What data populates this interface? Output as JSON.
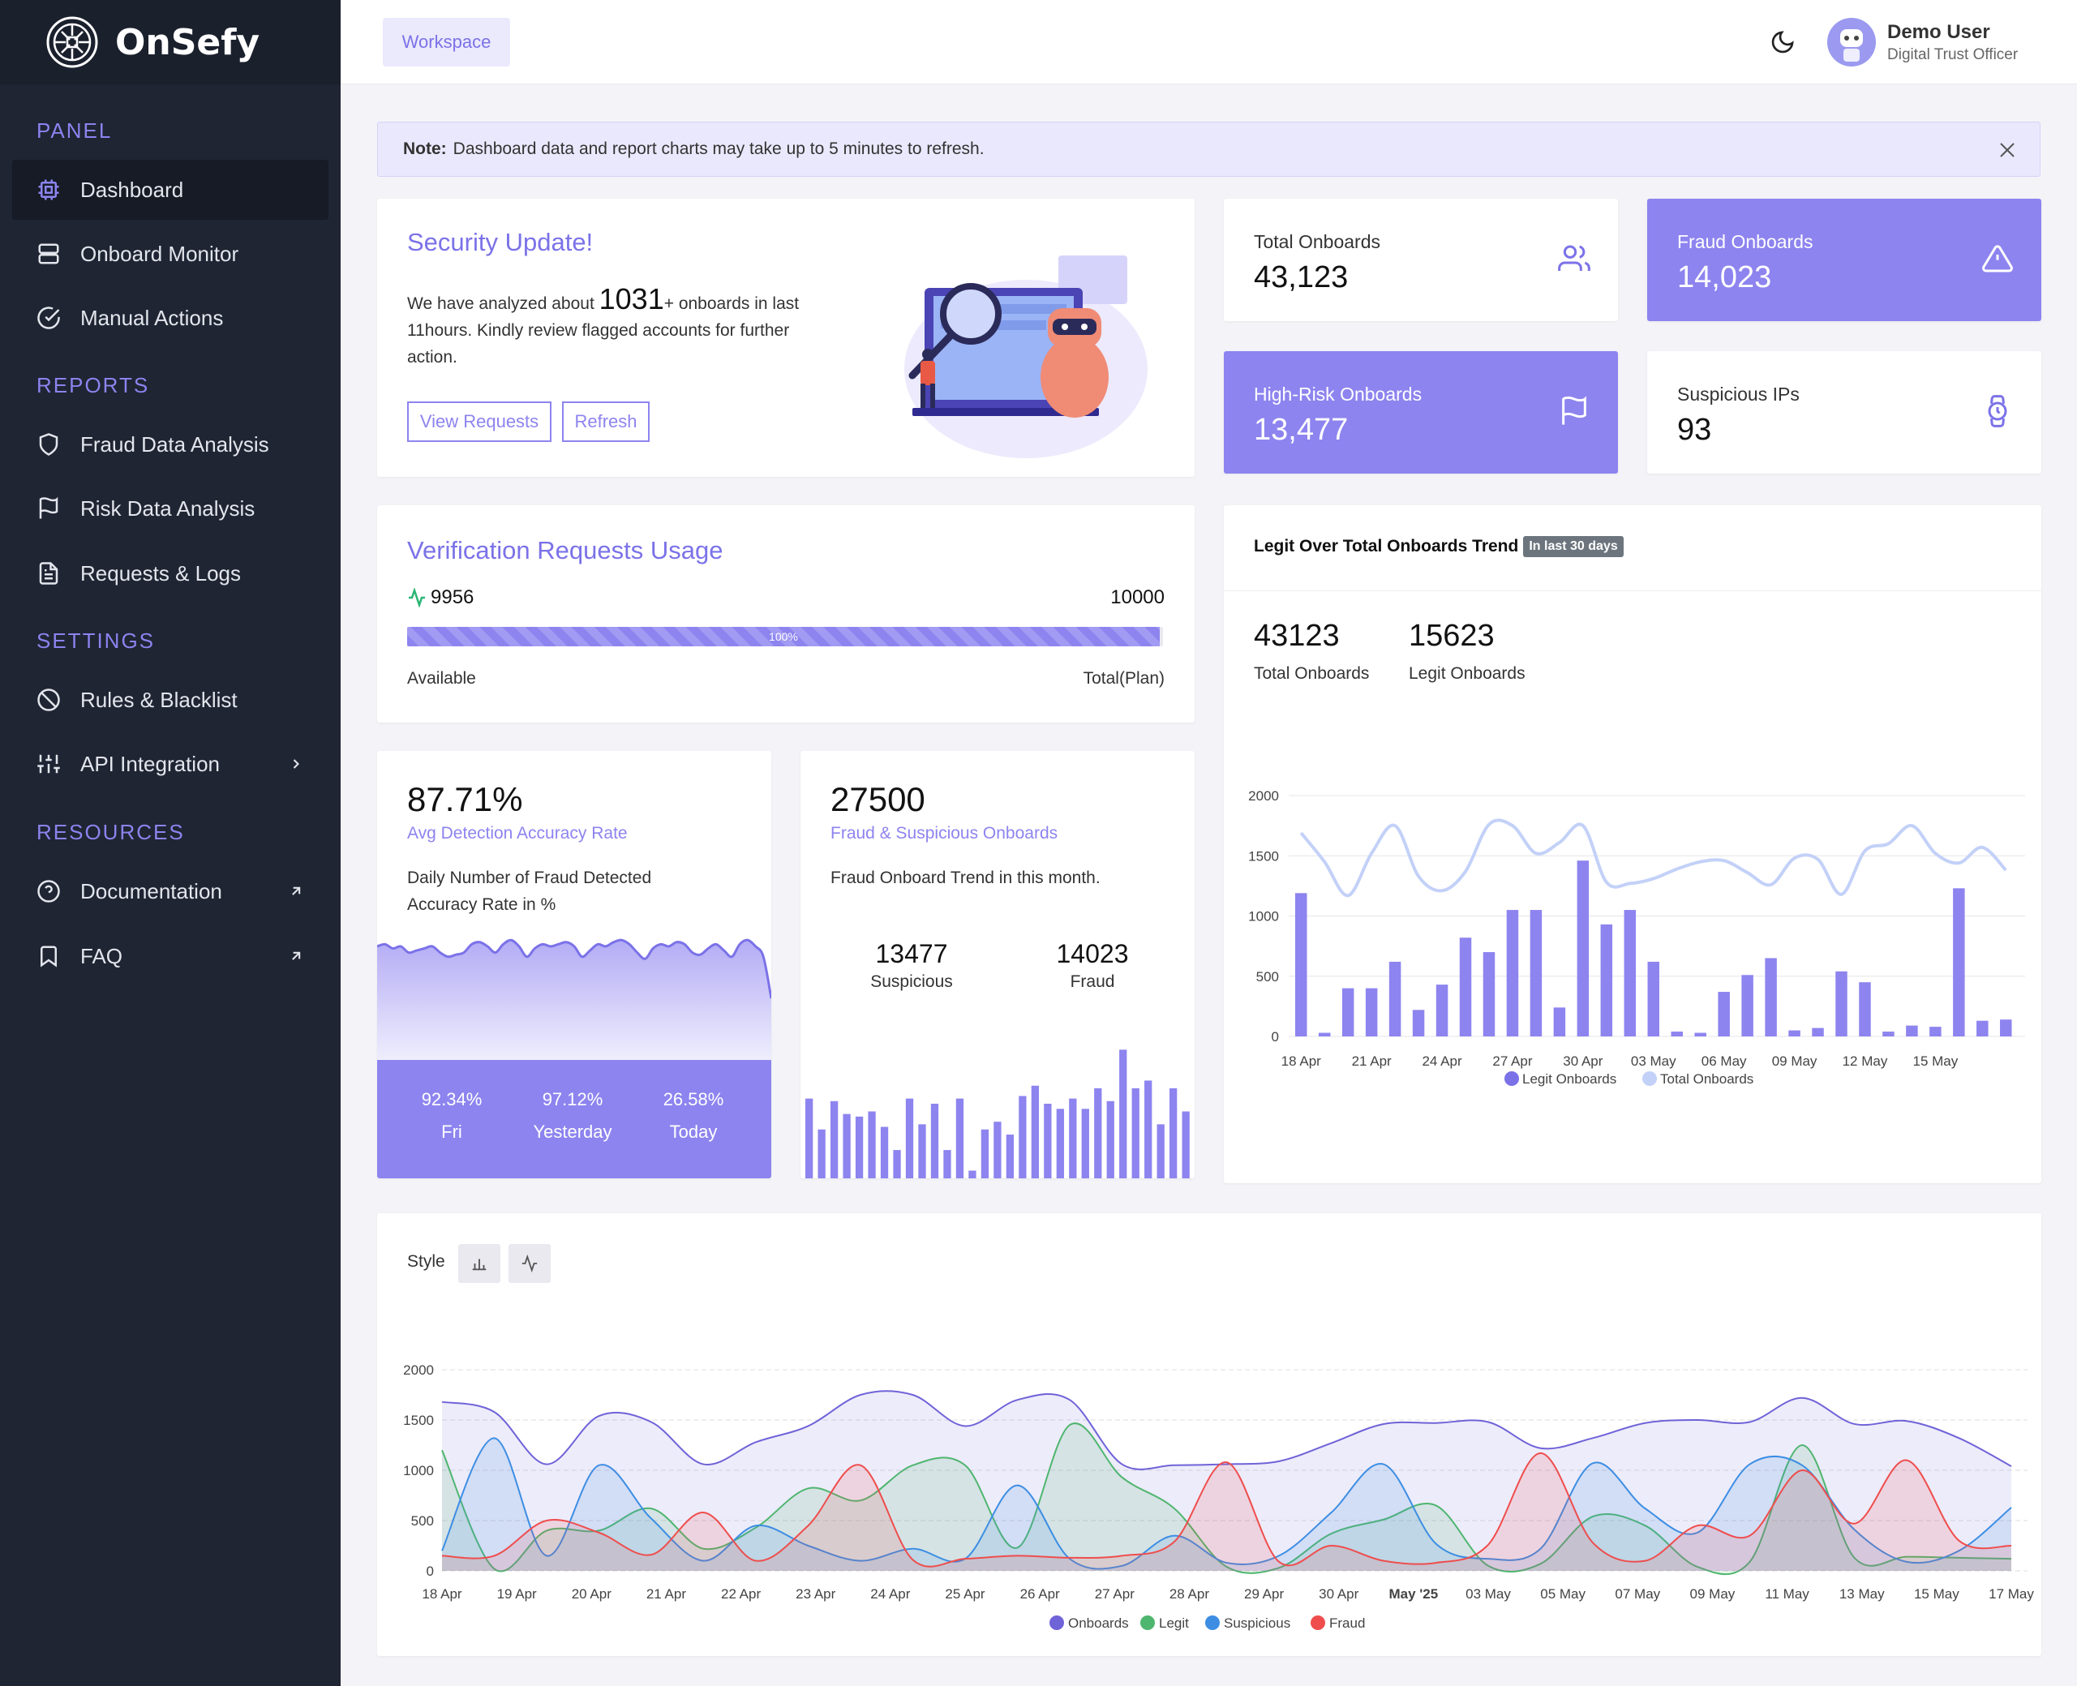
{
  "brand": {
    "name": "OnSefy"
  },
  "sidebar": {
    "sections": [
      {
        "title": "PANEL",
        "items": [
          {
            "label": "Dashboard",
            "icon": "cpu-icon"
          },
          {
            "label": "Onboard Monitor",
            "icon": "server-icon"
          },
          {
            "label": "Manual Actions",
            "icon": "check-circle-icon"
          }
        ]
      },
      {
        "title": "REPORTS",
        "items": [
          {
            "label": "Fraud Data Analysis",
            "icon": "shield-icon"
          },
          {
            "label": "Risk Data Analysis",
            "icon": "flag-icon"
          },
          {
            "label": "Requests & Logs",
            "icon": "file-text-icon"
          }
        ]
      },
      {
        "title": "SETTINGS",
        "items": [
          {
            "label": "Rules & Blacklist",
            "icon": "slash-icon"
          },
          {
            "label": "API Integration",
            "icon": "sliders-icon"
          }
        ]
      },
      {
        "title": "RESOURCES",
        "items": [
          {
            "label": "Documentation",
            "icon": "help-circle-icon"
          },
          {
            "label": "FAQ",
            "icon": "bookmark-icon"
          }
        ]
      }
    ]
  },
  "topbar": {
    "workspace": "Workspace",
    "user_name": "Demo User",
    "user_role": "Digital Trust Officer"
  },
  "note": {
    "bold": "Note:",
    "text": "Dashboard data and report charts may take up to 5 minutes to refresh."
  },
  "security": {
    "title": "Security Update!",
    "text1": "We have analyzed about",
    "count": "1031",
    "text2": "+ onboards in last",
    "text3": "11hours. Kindly review flagged accounts for further",
    "text4": "action.",
    "btn_view": "View Requests",
    "btn_refresh": "Refresh"
  },
  "stats": {
    "total": {
      "label": "Total Onboards",
      "value": "43,123"
    },
    "fraud": {
      "label": "Fraud Onboards",
      "value": "14,023"
    },
    "high_risk": {
      "label": "High-Risk Onboards",
      "value": "13,477"
    },
    "ips": {
      "label": "Suspicious IPs",
      "value": "93"
    }
  },
  "usage": {
    "title": "Verification Requests Usage",
    "used": "9956",
    "total": "10000",
    "percent_label": "100%",
    "fraction": 0.9956,
    "available": "Available",
    "total_plan": "Total(Plan)"
  },
  "accuracy": {
    "value": "87.71%",
    "subtitle": "Avg Detection Accuracy Rate",
    "desc1": "Daily Number of Fraud Detected",
    "desc2": "Accuracy Rate in %",
    "days": [
      {
        "value": "92.34%",
        "label": "Fri"
      },
      {
        "value": "97.12%",
        "label": "Yesterday"
      },
      {
        "value": "26.58%",
        "label": "Today"
      }
    ],
    "spark": [
      55,
      56,
      54,
      55,
      52,
      53,
      54,
      55,
      52,
      50,
      51,
      52,
      56,
      57,
      55,
      52,
      56,
      58,
      55,
      50,
      54,
      56,
      55,
      56,
      57,
      55,
      50,
      53,
      56,
      55,
      57,
      58,
      56,
      52,
      49,
      54,
      56,
      55,
      57,
      56,
      52,
      51,
      54,
      56,
      53,
      50,
      56,
      58,
      55,
      50,
      30
    ]
  },
  "fraud_trend": {
    "value": "27500",
    "subtitle": "Fraud & Suspicious Onboards",
    "desc": "Fraud Onboard Trend in this month.",
    "suspicious": "13477",
    "suspicious_label": "Suspicious",
    "fraud": "14023",
    "fraud_label": "Fraud",
    "bars": [
      62,
      38,
      60,
      50,
      48,
      52,
      40,
      22,
      62,
      42,
      58,
      22,
      62,
      6,
      38,
      44,
      34,
      64,
      72,
      58,
      54,
      62,
      54,
      70,
      60,
      100,
      70,
      76,
      42,
      70,
      52
    ]
  },
  "legit_trend": {
    "title": "Legit Over Total Onboards Trend",
    "badge": "In last 30 days",
    "total": "43123",
    "total_label": "Total Onboards",
    "legit": "15623",
    "legit_label": "Legit Onboards"
  },
  "style_label": "Style",
  "chart_data": [
    {
      "type": "bar",
      "title": "Legit Over Total Onboards Trend",
      "ylim": [
        0,
        2000
      ],
      "yticks": [
        0,
        500,
        1000,
        1500,
        2000
      ],
      "x_ticks": [
        "18 Apr",
        "21 Apr",
        "24 Apr",
        "27 Apr",
        "30 Apr",
        "03 May",
        "06 May",
        "09 May",
        "12 May",
        "15 May"
      ],
      "legend": [
        "Legit Onboards",
        "Total Onboards"
      ],
      "series": [
        {
          "name": "Legit Onboards",
          "kind": "bar",
          "values": [
            1190,
            30,
            400,
            400,
            620,
            220,
            430,
            820,
            700,
            1050,
            1050,
            240,
            1460,
            930,
            1050,
            620,
            40,
            30,
            370,
            510,
            650,
            50,
            70,
            540,
            450,
            40,
            90,
            80,
            1230,
            130,
            140
          ]
        },
        {
          "name": "Total Onboards",
          "kind": "line",
          "values": [
            1690,
            1450,
            1170,
            1520,
            1750,
            1330,
            1210,
            1370,
            1760,
            1750,
            1520,
            1610,
            1750,
            1280,
            1270,
            1310,
            1390,
            1450,
            1460,
            1360,
            1260,
            1480,
            1470,
            1180,
            1540,
            1600,
            1750,
            1520,
            1440,
            1570,
            1380
          ]
        }
      ]
    },
    {
      "type": "area",
      "ylim": [
        0,
        2000
      ],
      "yticks": [
        0,
        500,
        1000,
        1500,
        2000
      ],
      "x_ticks": [
        "18 Apr",
        "19 Apr",
        "20 Apr",
        "21 Apr",
        "22 Apr",
        "23 Apr",
        "24 Apr",
        "25 Apr",
        "26 Apr",
        "27 Apr",
        "28 Apr",
        "29 Apr",
        "30 Apr",
        "May '25",
        "03 May",
        "05 May",
        "07 May",
        "09 May",
        "11 May",
        "13 May",
        "15 May",
        "17 May"
      ],
      "legend": [
        "Onboards",
        "Legit",
        "Suspicious",
        "Fraud"
      ],
      "series": [
        {
          "name": "Onboards",
          "color": "#6f63d8",
          "values": [
            1680,
            1580,
            1060,
            1540,
            1480,
            1060,
            1280,
            1440,
            1750,
            1750,
            1440,
            1700,
            1700,
            1060,
            1050,
            1060,
            1090,
            1270,
            1460,
            1470,
            1480,
            1220,
            1320,
            1470,
            1500,
            1480,
            1720,
            1460,
            1490,
            1320,
            1040
          ]
        },
        {
          "name": "Legit",
          "color": "#4fb66f",
          "values": [
            1200,
            20,
            400,
            400,
            620,
            220,
            430,
            820,
            700,
            1050,
            1050,
            230,
            1450,
            930,
            620,
            40,
            30,
            370,
            510,
            650,
            50,
            70,
            540,
            450,
            40,
            90,
            1250,
            130,
            140,
            130,
            120
          ]
        },
        {
          "name": "Suspicious",
          "color": "#3d8ee3",
          "values": [
            200,
            1320,
            150,
            1050,
            520,
            100,
            450,
            250,
            100,
            220,
            120,
            850,
            120,
            50,
            350,
            80,
            150,
            580,
            1060,
            270,
            120,
            220,
            1070,
            620,
            380,
            1060,
            1050,
            410,
            90,
            200,
            630
          ]
        },
        {
          "name": "Fraud",
          "color": "#ef4d4d",
          "values": [
            150,
            150,
            500,
            380,
            160,
            580,
            100,
            450,
            1050,
            110,
            120,
            150,
            130,
            150,
            290,
            1080,
            90,
            250,
            100,
            80,
            260,
            1170,
            280,
            100,
            450,
            350,
            1000,
            470,
            1100,
            300,
            250
          ]
        }
      ]
    }
  ]
}
